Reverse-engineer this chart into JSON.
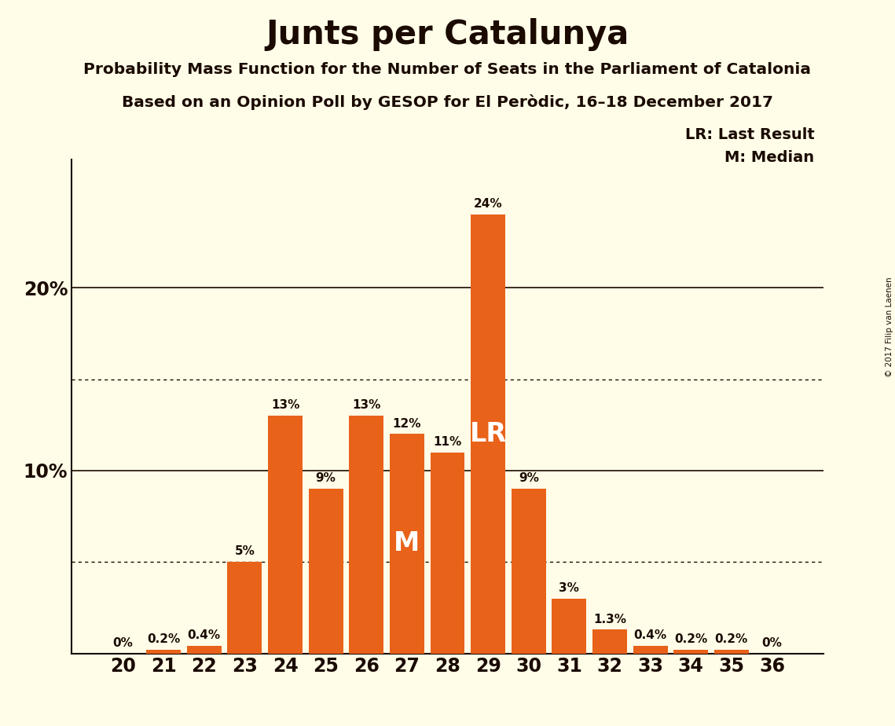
{
  "title": "Junts per Catalunya",
  "subtitle1": "Probability Mass Function for the Number of Seats in the Parliament of Catalonia",
  "subtitle2": "Based on an Opinion Poll by GESOP for El Peròdic, 16–18 December 2017",
  "copyright": "© 2017 Filip van Laenen",
  "categories": [
    20,
    21,
    22,
    23,
    24,
    25,
    26,
    27,
    28,
    29,
    30,
    31,
    32,
    33,
    34,
    35,
    36
  ],
  "values": [
    0,
    0.2,
    0.4,
    5,
    13,
    9,
    13,
    12,
    11,
    24,
    9,
    3,
    1.3,
    0.4,
    0.2,
    0.2,
    0
  ],
  "bar_labels": [
    "0%",
    "0.2%",
    "0.4%",
    "5%",
    "13%",
    "9%",
    "13%",
    "12%",
    "11%",
    "24%",
    "9%",
    "3%",
    "1.3%",
    "0.4%",
    "0.2%",
    "0.2%",
    "0%"
  ],
  "bar_color": "#E8621A",
  "background_color": "#FFFDE8",
  "text_color": "#1A0A00",
  "yticks": [
    10,
    20
  ],
  "ylim": [
    0,
    27
  ],
  "dotted_lines": [
    5,
    15
  ],
  "LR_seat": 29,
  "M_seat": 27,
  "legend_text": [
    "LR: Last Result",
    "M: Median"
  ]
}
